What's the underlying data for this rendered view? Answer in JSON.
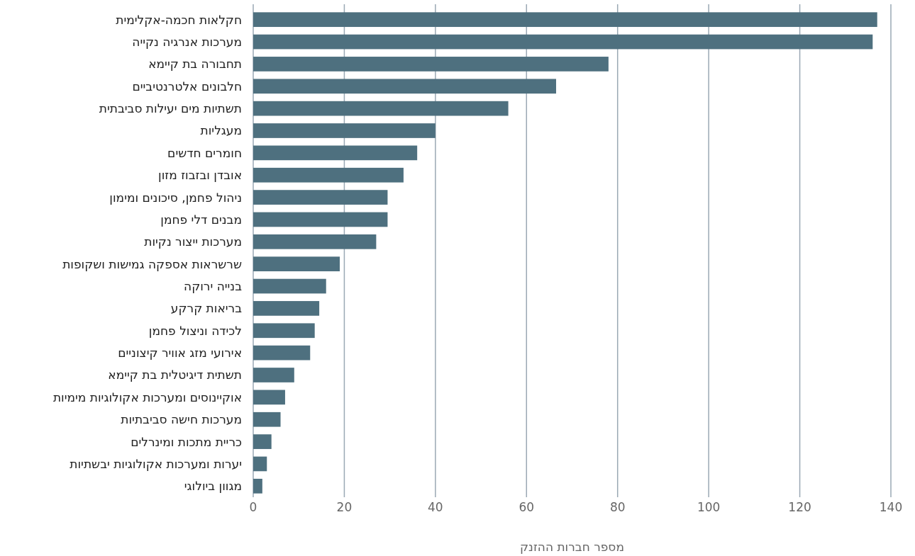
{
  "chart_data": {
    "type": "bar",
    "orientation": "horizontal",
    "xlabel": "מספר חברות ההזנק",
    "categories": [
      "חקלאות חכמה-אקלימית",
      "מערכות אנרגיה נקייה",
      "תחבורה בת קיימא",
      "חלבונים אלטרנטיביים",
      "תשתיות מים יעילות סביבתית",
      "מעגליות",
      "חומרים חדשים",
      "אובדן ובזבוז מזון",
      "ניהול פחמן, סיכונים ומימון",
      "מבנים דלי פחמן",
      "מערכות ייצור נקיות",
      "שרשראות אספקה גמישות ושקופות",
      "בנייה ירוקה",
      "בריאות קרקע",
      "לכידה וניצול פחמן",
      "אירועי מזג אוויר קיצוניים",
      "תשתית דיגיטלית בת קיימא",
      "אוקיינוסים ומערכות אקולוגיות מימיות",
      "מערכות חישה סביבתיות",
      "כריית מתכות ומינרלים",
      "יערות ומערכות אקולוגיות יבשתיות",
      "מגוון ביולוגי"
    ],
    "values": [
      137,
      136,
      78,
      66.5,
      56,
      40,
      36,
      33,
      29.5,
      29.5,
      27,
      19,
      16,
      14.5,
      13.5,
      12.5,
      9,
      7,
      6,
      4,
      3,
      2
    ],
    "color": "#4e707f",
    "xlim": [
      0,
      140
    ],
    "xticks": [
      0,
      20,
      40,
      60,
      80,
      100,
      120,
      140
    ],
    "grid": "x"
  }
}
